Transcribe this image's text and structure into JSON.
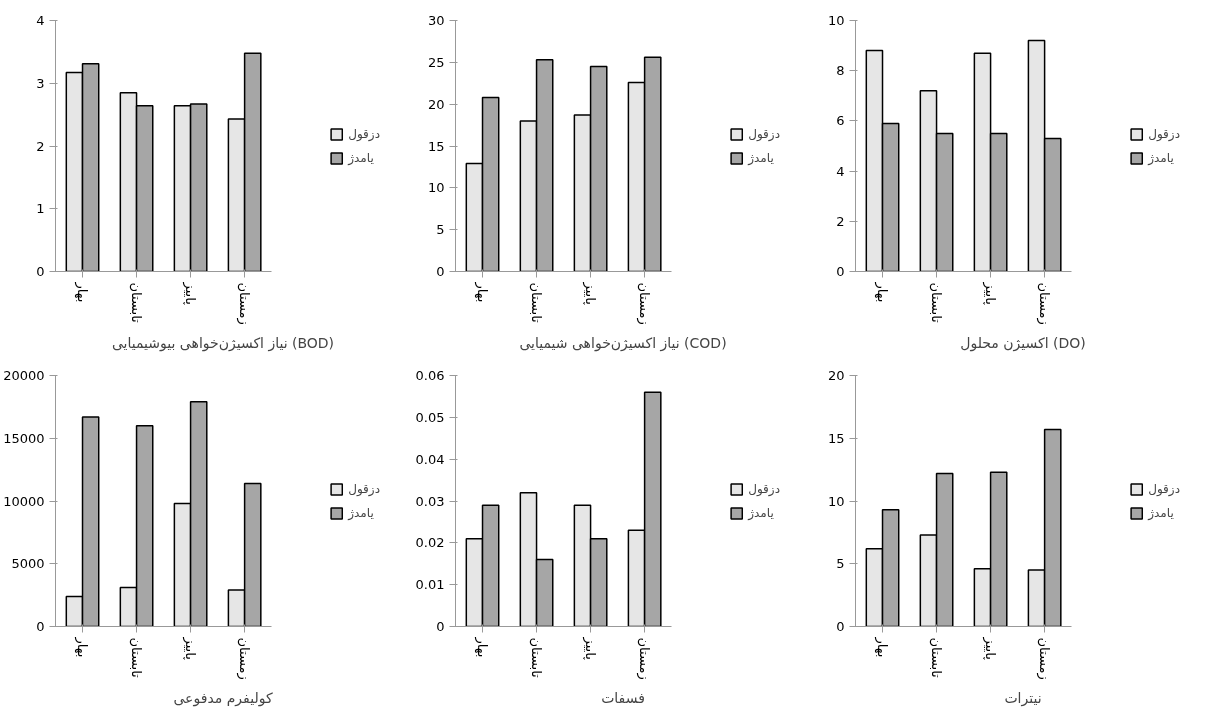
{
  "chart_data": [
    {
      "type": "bar",
      "title": "نیاز اکسیژن‌خواهی بیوشیمیایی (BOD)",
      "categories": [
        "بهار",
        "تابستان",
        "پاییز",
        "زمستان"
      ],
      "ylim": [
        0,
        4
      ],
      "yticks": [
        0,
        1,
        2,
        3,
        4
      ],
      "grid": false,
      "legend": "right",
      "series": [
        {
          "name": "دزقول",
          "color": "#e6e6e6",
          "values": [
            3.17,
            2.85,
            2.64,
            2.43
          ]
        },
        {
          "name": "یامدژ",
          "color": "#a6a6a6",
          "values": [
            3.31,
            2.64,
            2.67,
            3.48
          ]
        }
      ]
    },
    {
      "type": "bar",
      "title": "نیاز اکسیژن‌خواهی شیمیایی (COD)",
      "categories": [
        "بهار",
        "تابستان",
        "پاییز",
        "زمستان"
      ],
      "ylim": [
        0,
        30
      ],
      "yticks": [
        0,
        5,
        10,
        15,
        20,
        25,
        30
      ],
      "grid": false,
      "legend": "right",
      "series": [
        {
          "name": "دزقول",
          "color": "#e6e6e6",
          "values": [
            12.9,
            18.0,
            18.7,
            22.6
          ]
        },
        {
          "name": "یامدژ",
          "color": "#a6a6a6",
          "values": [
            20.8,
            25.3,
            24.5,
            25.6
          ]
        }
      ]
    },
    {
      "type": "bar",
      "title": "اکسیژن محلول (DO)",
      "categories": [
        "بهار",
        "تابستان",
        "پاییز",
        "زمستان"
      ],
      "ylim": [
        0,
        10
      ],
      "yticks": [
        0,
        2,
        4,
        6,
        8,
        10
      ],
      "grid": false,
      "legend": "right",
      "series": [
        {
          "name": "دزقول",
          "color": "#e6e6e6",
          "values": [
            8.8,
            7.2,
            8.7,
            9.2
          ]
        },
        {
          "name": "یامدژ",
          "color": "#a6a6a6",
          "values": [
            5.9,
            5.5,
            5.5,
            5.3
          ]
        }
      ]
    },
    {
      "type": "bar",
      "title": "کولیفرم مدفوعی",
      "categories": [
        "بهار",
        "تابستان",
        "پاییز",
        "زمستان"
      ],
      "ylim": [
        0,
        20000
      ],
      "yticks": [
        0,
        5000,
        10000,
        15000,
        20000
      ],
      "grid": false,
      "legend": "right",
      "series": [
        {
          "name": "دزقول",
          "color": "#e6e6e6",
          "values": [
            2400,
            3100,
            9800,
            2900
          ]
        },
        {
          "name": "یامدژ",
          "color": "#a6a6a6",
          "values": [
            16700,
            16000,
            17900,
            11400
          ]
        }
      ]
    },
    {
      "type": "bar",
      "title": "فسفات",
      "categories": [
        "بهار",
        "تابستان",
        "پاییز",
        "زمستان"
      ],
      "ylim": [
        0,
        0.06
      ],
      "yticks": [
        0,
        0.01,
        0.02,
        0.03,
        0.04,
        0.05,
        0.06
      ],
      "grid": false,
      "legend": "right",
      "series": [
        {
          "name": "دزقول",
          "color": "#e6e6e6",
          "values": [
            0.021,
            0.032,
            0.029,
            0.023
          ]
        },
        {
          "name": "یامدژ",
          "color": "#a6a6a6",
          "values": [
            0.029,
            0.016,
            0.021,
            0.056
          ]
        }
      ]
    },
    {
      "type": "bar",
      "title": "نیترات",
      "categories": [
        "بهار",
        "تابستان",
        "پاییز",
        "زمستان"
      ],
      "ylim": [
        0,
        20
      ],
      "yticks": [
        0,
        5,
        10,
        15,
        20
      ],
      "grid": false,
      "legend": "right",
      "series": [
        {
          "name": "دزقول",
          "color": "#e6e6e6",
          "values": [
            6.2,
            7.3,
            4.6,
            4.5
          ]
        },
        {
          "name": "یامدژ",
          "color": "#a6a6a6",
          "values": [
            9.3,
            12.2,
            12.3,
            15.7
          ]
        }
      ]
    }
  ]
}
